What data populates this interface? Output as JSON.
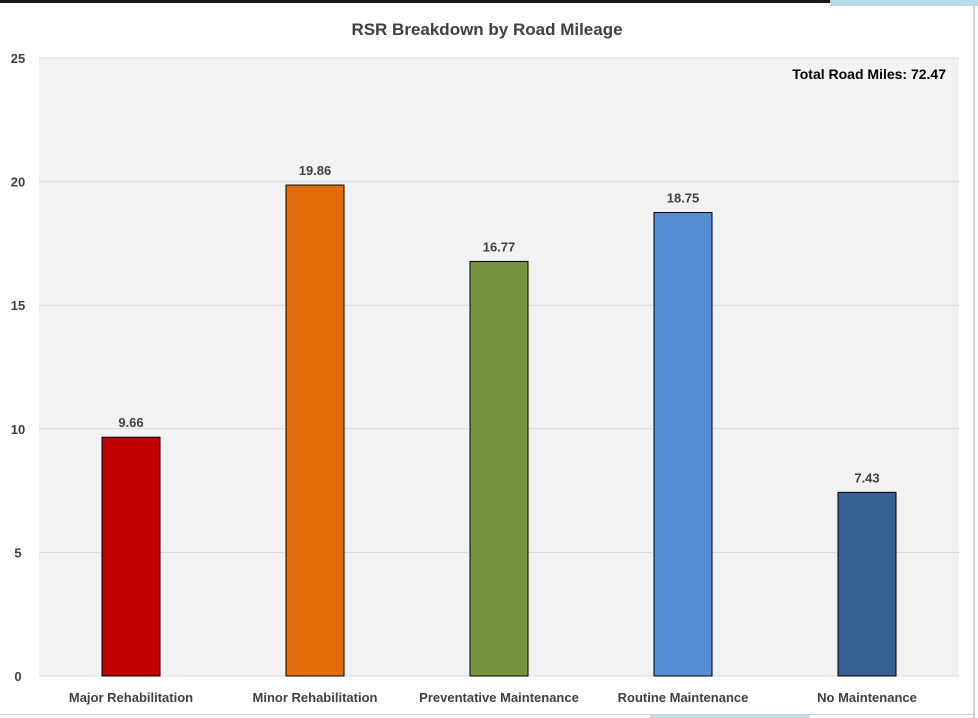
{
  "chart_data": {
    "type": "bar",
    "title": "RSR Breakdown by Road Mileage",
    "annotation": "Total Road Miles: 72.47",
    "categories": [
      "Major Rehabilitation",
      "Minor Rehabilitation",
      "Preventative Maintenance",
      "Routine Maintenance",
      "No Maintenance"
    ],
    "values": [
      9.66,
      19.86,
      16.77,
      18.75,
      7.43
    ],
    "value_labels": [
      "9.66",
      "19.86",
      "16.77",
      "18.75",
      "7.43"
    ],
    "colors": [
      "#c00000",
      "#e46c0a",
      "#77933c",
      "#558ed5",
      "#366092"
    ],
    "ylim": [
      0,
      25
    ],
    "yticks": [
      "0",
      "5",
      "10",
      "15",
      "20",
      "25"
    ],
    "xlabel": "",
    "ylabel": "",
    "grid": true,
    "legend": "none"
  }
}
